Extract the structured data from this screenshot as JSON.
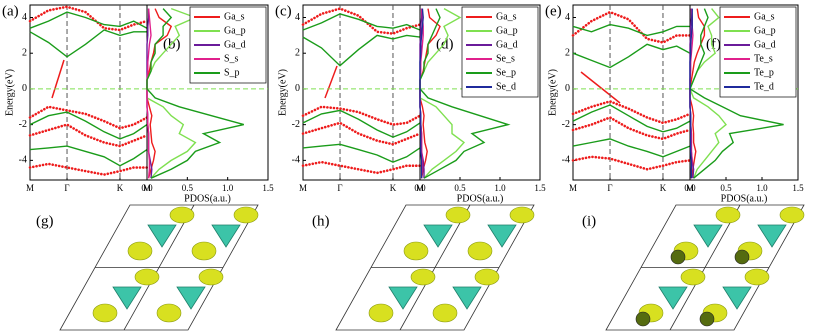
{
  "chart_data": [
    {
      "type": "line",
      "label": "(a)",
      "ylabel": "Energy(eV)",
      "xlim": [
        0,
        3.16
      ],
      "ylim": [
        -5.1,
        4.7
      ],
      "xticks": [
        {
          "value": 0,
          "label": "M"
        },
        {
          "value": 1,
          "label": "Γ"
        },
        {
          "value": 2.43,
          "label": "K"
        },
        {
          "value": 3.16,
          "label": "M"
        }
      ],
      "yticks": [
        -4,
        -2,
        0,
        2,
        4
      ],
      "xgrid": true,
      "fermi_line": true,
      "x": [
        0,
        0.5,
        1,
        1.5,
        2,
        2.43,
        2.8,
        3.16
      ],
      "series": [
        {
          "color": "#1a9c1a",
          "style": "line",
          "values": [
            3.2,
            2.6,
            1.8,
            2.5,
            3.3,
            3.0,
            3.2,
            3.2
          ]
        },
        {
          "color": "#ee1c1c",
          "style": "dotted",
          "values": [
            3.8,
            4.4,
            4.6,
            4.3,
            3.4,
            3.3,
            3.6,
            3.8
          ]
        },
        {
          "color": "#1a9c1a",
          "style": "line",
          "values": [
            3.4,
            3.8,
            4.3,
            4.0,
            3.6,
            3.5,
            3.8,
            3.4
          ]
        },
        {
          "color": "#ee1c1c",
          "style": "dotted",
          "values": [
            -1.6,
            -1.0,
            -1.2,
            -1.4,
            -1.8,
            -2.2,
            -2.0,
            -1.6
          ]
        },
        {
          "color": "#1a9c1a",
          "style": "line",
          "values": [
            -2.0,
            -1.5,
            -1.3,
            -1.8,
            -2.4,
            -2.8,
            -2.5,
            -2.0
          ]
        },
        {
          "color": "#ee1c1c",
          "style": "dotted",
          "values": [
            -2.6,
            -2.3,
            -2.0,
            -2.6,
            -3.0,
            -3.2,
            -2.9,
            -2.6
          ]
        },
        {
          "color": "#1a9c1a",
          "style": "line",
          "values": [
            -3.4,
            -3.3,
            -3.2,
            -3.5,
            -3.8,
            -4.3,
            -3.9,
            -3.4
          ]
        },
        {
          "color": "#ee1c1c",
          "style": "dotted",
          "values": [
            -4.4,
            -4.2,
            -4.4,
            -4.6,
            -4.8,
            -4.6,
            -4.4,
            -4.4
          ]
        }
      ]
    },
    {
      "type": "line",
      "label": "(b)",
      "xlabel": "PDOS(a.u.)",
      "xlim": [
        0,
        1.5
      ],
      "ylim": [
        -5.1,
        4.7
      ],
      "xticks": [
        {
          "value": 0,
          "label": "0.0"
        },
        0.5,
        {
          "value": 1,
          "label": "1.0"
        },
        1.5
      ],
      "fermi_line": true,
      "legend": "upper right",
      "y": [
        -5,
        -4.5,
        -4,
        -3.5,
        -3,
        -2.5,
        -2,
        -1.5,
        -1,
        -0.5,
        0,
        0.5,
        1,
        1.5,
        2,
        2.5,
        3,
        3.5,
        4,
        4.5
      ],
      "series": [
        {
          "name": "Ga_s",
          "color": "#ee1c1c",
          "values": [
            0.02,
            0.05,
            0.08,
            0.1,
            0.06,
            0.05,
            0.04,
            0.06,
            0.03,
            0,
            0,
            0,
            0.03,
            0.05,
            0.08,
            0.1,
            0.25,
            0.3,
            0.15,
            0.1
          ]
        },
        {
          "name": "Ga_p",
          "color": "#7fe050",
          "values": [
            0.05,
            0.15,
            0.3,
            0.5,
            0.6,
            0.4,
            0.45,
            0.3,
            0.2,
            0,
            0,
            0,
            0.05,
            0.1,
            0.2,
            0.3,
            0.4,
            0.35,
            0.6,
            0.3
          ]
        },
        {
          "name": "Ga_d",
          "color": "#6a1b9a",
          "values": [
            0.05,
            0.06,
            0.04,
            0.02,
            0.02,
            0.02,
            0.01,
            0.01,
            0,
            0,
            0,
            0,
            0,
            0,
            0,
            0,
            0.01,
            0.01,
            0.02,
            0.02
          ]
        },
        {
          "name": "S_s",
          "color": "#e0208c",
          "values": [
            0.02,
            0.03,
            0.03,
            0.02,
            0.02,
            0.02,
            0.01,
            0.01,
            0,
            0,
            0,
            0,
            0.01,
            0.01,
            0.02,
            0.03,
            0.05,
            0.04,
            0.03,
            0.02
          ]
        },
        {
          "name": "S_p",
          "color": "#1a9c1a",
          "values": [
            0.05,
            0.3,
            0.5,
            0.6,
            0.9,
            0.7,
            1.2,
            0.8,
            0.4,
            0.1,
            0,
            0,
            0.05,
            0.05,
            0.1,
            0.1,
            0.2,
            0.2,
            0.3,
            0.2
          ]
        }
      ]
    },
    {
      "type": "line",
      "label": "(c)",
      "ylabel": "Energy(eV)",
      "xlim": [
        0,
        3.16
      ],
      "ylim": [
        -5.1,
        4.7
      ],
      "xticks": [
        {
          "value": 0,
          "label": "M"
        },
        {
          "value": 1,
          "label": "Γ"
        },
        {
          "value": 2.43,
          "label": "K"
        },
        {
          "value": 3.16,
          "label": "M"
        }
      ],
      "yticks": [
        -4,
        -2,
        0,
        2,
        4
      ],
      "xgrid": true,
      "fermi_line": true,
      "x": [
        0,
        0.5,
        1,
        1.5,
        2,
        2.43,
        2.8,
        3.16
      ],
      "series": [
        {
          "color": "#1a9c1a",
          "style": "line",
          "values": [
            2.9,
            2.3,
            1.3,
            2.2,
            3.0,
            2.8,
            3.0,
            2.9
          ]
        },
        {
          "color": "#ee1c1c",
          "style": "dotted",
          "values": [
            3.6,
            4.2,
            4.5,
            4.1,
            3.2,
            3.1,
            3.4,
            3.6
          ]
        },
        {
          "color": "#1a9c1a",
          "style": "line",
          "values": [
            3.3,
            3.7,
            4.2,
            3.9,
            3.5,
            3.4,
            3.6,
            3.3
          ]
        },
        {
          "color": "#ee1c1c",
          "style": "dotted",
          "values": [
            -1.5,
            -1.0,
            -1.1,
            -1.3,
            -1.7,
            -2.0,
            -1.9,
            -1.5
          ]
        },
        {
          "color": "#1a9c1a",
          "style": "line",
          "values": [
            -1.9,
            -1.4,
            -1.2,
            -1.7,
            -2.3,
            -2.7,
            -2.4,
            -1.9
          ]
        },
        {
          "color": "#ee1c1c",
          "style": "dotted",
          "values": [
            -2.5,
            -2.2,
            -1.9,
            -2.5,
            -2.9,
            -3.1,
            -2.8,
            -2.5
          ]
        },
        {
          "color": "#1a9c1a",
          "style": "line",
          "values": [
            -3.3,
            -3.2,
            -3.1,
            -3.4,
            -3.7,
            -4.1,
            -3.8,
            -3.3
          ]
        },
        {
          "color": "#ee1c1c",
          "style": "dotted",
          "values": [
            -4.3,
            -4.1,
            -4.3,
            -4.5,
            -4.7,
            -4.5,
            -4.3,
            -4.3
          ]
        }
      ]
    },
    {
      "type": "line",
      "label": "(d)",
      "xlabel": "PDOS(a.u.)",
      "xlim": [
        0,
        1.5
      ],
      "ylim": [
        -5.1,
        4.7
      ],
      "xticks": [
        {
          "value": 0,
          "label": "0.0"
        },
        0.5,
        {
          "value": 1,
          "label": "1.0"
        },
        1.5
      ],
      "fermi_line": true,
      "legend": "upper right",
      "y": [
        -5,
        -4.5,
        -4,
        -3.5,
        -3,
        -2.5,
        -2,
        -1.5,
        -1,
        -0.5,
        0,
        0.5,
        1,
        1.5,
        2,
        2.5,
        3,
        3.5,
        4,
        4.5
      ],
      "series": [
        {
          "name": "Ga_s",
          "color": "#ee1c1c",
          "values": [
            0.02,
            0.04,
            0.07,
            0.09,
            0.06,
            0.05,
            0.04,
            0.05,
            0.03,
            0,
            0,
            0,
            0.04,
            0.06,
            0.08,
            0.1,
            0.2,
            0.25,
            0.12,
            0.1
          ]
        },
        {
          "name": "Ga_p",
          "color": "#7fe050",
          "values": [
            0.05,
            0.15,
            0.3,
            0.45,
            0.55,
            0.4,
            0.4,
            0.3,
            0.2,
            0,
            0,
            0,
            0.05,
            0.1,
            0.2,
            0.3,
            0.35,
            0.3,
            0.5,
            0.3
          ]
        },
        {
          "name": "Ga_d",
          "color": "#6a1b9a",
          "values": [
            0.05,
            0.05,
            0.04,
            0.02,
            0.02,
            0.02,
            0.01,
            0.01,
            0,
            0,
            0,
            0,
            0,
            0,
            0,
            0,
            0.01,
            0.01,
            0.02,
            0.02
          ]
        },
        {
          "name": "Se_s",
          "color": "#e0208c",
          "values": [
            0.02,
            0.03,
            0.03,
            0.02,
            0.02,
            0.02,
            0.01,
            0.01,
            0,
            0,
            0,
            0,
            0.01,
            0.01,
            0.02,
            0.03,
            0.04,
            0.04,
            0.03,
            0.02
          ]
        },
        {
          "name": "Se_p",
          "color": "#1a9c1a",
          "values": [
            0.05,
            0.25,
            0.45,
            0.55,
            0.8,
            0.65,
            1.1,
            0.75,
            0.4,
            0.1,
            0,
            0,
            0.05,
            0.05,
            0.1,
            0.1,
            0.15,
            0.2,
            0.25,
            0.2
          ]
        },
        {
          "name": "Se_d",
          "color": "#1f2a9c",
          "values": [
            0.02,
            0.02,
            0.02,
            0.01,
            0.01,
            0.01,
            0.01,
            0.01,
            0,
            0,
            0,
            0,
            0,
            0,
            0.01,
            0.01,
            0.02,
            0.03,
            0.04,
            0.03
          ]
        }
      ]
    },
    {
      "type": "line",
      "label": "(e)",
      "ylabel": "Energy(eV)",
      "xlim": [
        0,
        3.16
      ],
      "ylim": [
        -5.1,
        4.7
      ],
      "xticks": [
        {
          "value": 0,
          "label": "M"
        },
        {
          "value": 1,
          "label": "Γ"
        },
        {
          "value": 2.43,
          "label": "K"
        },
        {
          "value": 3.16,
          "label": "M"
        }
      ],
      "yticks": [
        -4,
        -2,
        0,
        2,
        4
      ],
      "xgrid": true,
      "fermi_line": true,
      "x": [
        0,
        0.5,
        1,
        1.5,
        2,
        2.43,
        2.8,
        3.16
      ],
      "series": [
        {
          "color": "#1a9c1a",
          "style": "line",
          "values": [
            2.0,
            1.6,
            1.2,
            1.8,
            2.5,
            2.2,
            2.4,
            2.0
          ]
        },
        {
          "color": "#ee1c1c",
          "style": "dotted",
          "values": [
            3.0,
            3.8,
            4.3,
            3.9,
            2.8,
            2.6,
            3.0,
            3.0
          ]
        },
        {
          "color": "#1a9c1a",
          "style": "line",
          "values": [
            3.5,
            3.2,
            3.6,
            3.4,
            3.0,
            3.2,
            3.5,
            3.5
          ]
        },
        {
          "color": "#ee1c1c",
          "style": "dotted",
          "values": [
            -1.4,
            -1.0,
            -0.7,
            -1.1,
            -1.6,
            -1.9,
            -1.7,
            -1.4
          ]
        },
        {
          "color": "#1a9c1a",
          "style": "line",
          "values": [
            -1.8,
            -1.3,
            -0.9,
            -1.5,
            -2.1,
            -2.4,
            -2.2,
            -1.8
          ]
        },
        {
          "color": "#ee1c1c",
          "style": "dotted",
          "values": [
            -2.3,
            -2.0,
            -1.6,
            -2.2,
            -2.6,
            -2.8,
            -2.5,
            -2.3
          ]
        },
        {
          "color": "#1a9c1a",
          "style": "line",
          "values": [
            -3.2,
            -3.0,
            -2.8,
            -3.2,
            -3.5,
            -3.8,
            -3.5,
            -3.2
          ]
        },
        {
          "color": "#ee1c1c",
          "style": "dotted",
          "values": [
            -4.0,
            -3.8,
            -3.9,
            -4.2,
            -4.5,
            -4.3,
            -4.1,
            -4.0
          ]
        }
      ]
    },
    {
      "type": "line",
      "label": "(f)",
      "xlabel": "PDOS(a.u.)",
      "xlim": [
        0,
        1.5
      ],
      "ylim": [
        -5.1,
        4.7
      ],
      "xticks": [
        {
          "value": 0,
          "label": "0.0"
        },
        0.5,
        {
          "value": 1,
          "label": "1.0"
        },
        1.5
      ],
      "fermi_line": true,
      "legend": "upper right",
      "y": [
        -5,
        -4.5,
        -4,
        -3.5,
        -3,
        -2.5,
        -2,
        -1.5,
        -1,
        -0.5,
        0,
        0.5,
        1,
        1.5,
        2,
        2.5,
        3,
        3.5,
        4,
        4.5
      ],
      "series": [
        {
          "name": "Ga_s",
          "color": "#ee1c1c",
          "values": [
            0.02,
            0.04,
            0.06,
            0.08,
            0.05,
            0.05,
            0.04,
            0.05,
            0.03,
            0,
            0,
            0.02,
            0.04,
            0.06,
            0.1,
            0.15,
            0.2,
            0.2,
            0.12,
            0.1
          ]
        },
        {
          "name": "Ga_p",
          "color": "#7fe050",
          "values": [
            0.05,
            0.1,
            0.2,
            0.3,
            0.4,
            0.35,
            0.5,
            0.4,
            0.25,
            0.05,
            0,
            0.05,
            0.1,
            0.2,
            0.35,
            0.3,
            0.3,
            0.25,
            0.4,
            0.3
          ]
        },
        {
          "name": "Ga_d",
          "color": "#6a1b9a",
          "values": [
            0.04,
            0.05,
            0.03,
            0.02,
            0.02,
            0.02,
            0.01,
            0.01,
            0,
            0,
            0,
            0,
            0,
            0,
            0,
            0,
            0.01,
            0.01,
            0.02,
            0.02
          ]
        },
        {
          "name": "Te_s",
          "color": "#e0208c",
          "values": [
            0.02,
            0.02,
            0.03,
            0.02,
            0.02,
            0.02,
            0.01,
            0.01,
            0,
            0,
            0,
            0,
            0.01,
            0.01,
            0.02,
            0.03,
            0.04,
            0.03,
            0.03,
            0.02
          ]
        },
        {
          "name": "Te_p",
          "color": "#1a9c1a",
          "values": [
            0.05,
            0.2,
            0.35,
            0.45,
            0.6,
            0.55,
            1.3,
            0.7,
            0.45,
            0.2,
            0,
            0.05,
            0.1,
            0.15,
            0.2,
            0.15,
            0.15,
            0.2,
            0.25,
            0.2
          ]
        },
        {
          "name": "Te_d",
          "color": "#1f2a9c",
          "values": [
            0.02,
            0.02,
            0.02,
            0.01,
            0.01,
            0.01,
            0.01,
            0.01,
            0,
            0,
            0,
            0,
            0,
            0,
            0.01,
            0.01,
            0.02,
            0.03,
            0.03,
            0.03
          ]
        }
      ]
    }
  ],
  "structure_panels": [
    {
      "label": "(g)"
    },
    {
      "label": "(h)"
    },
    {
      "label": "(i)"
    }
  ]
}
